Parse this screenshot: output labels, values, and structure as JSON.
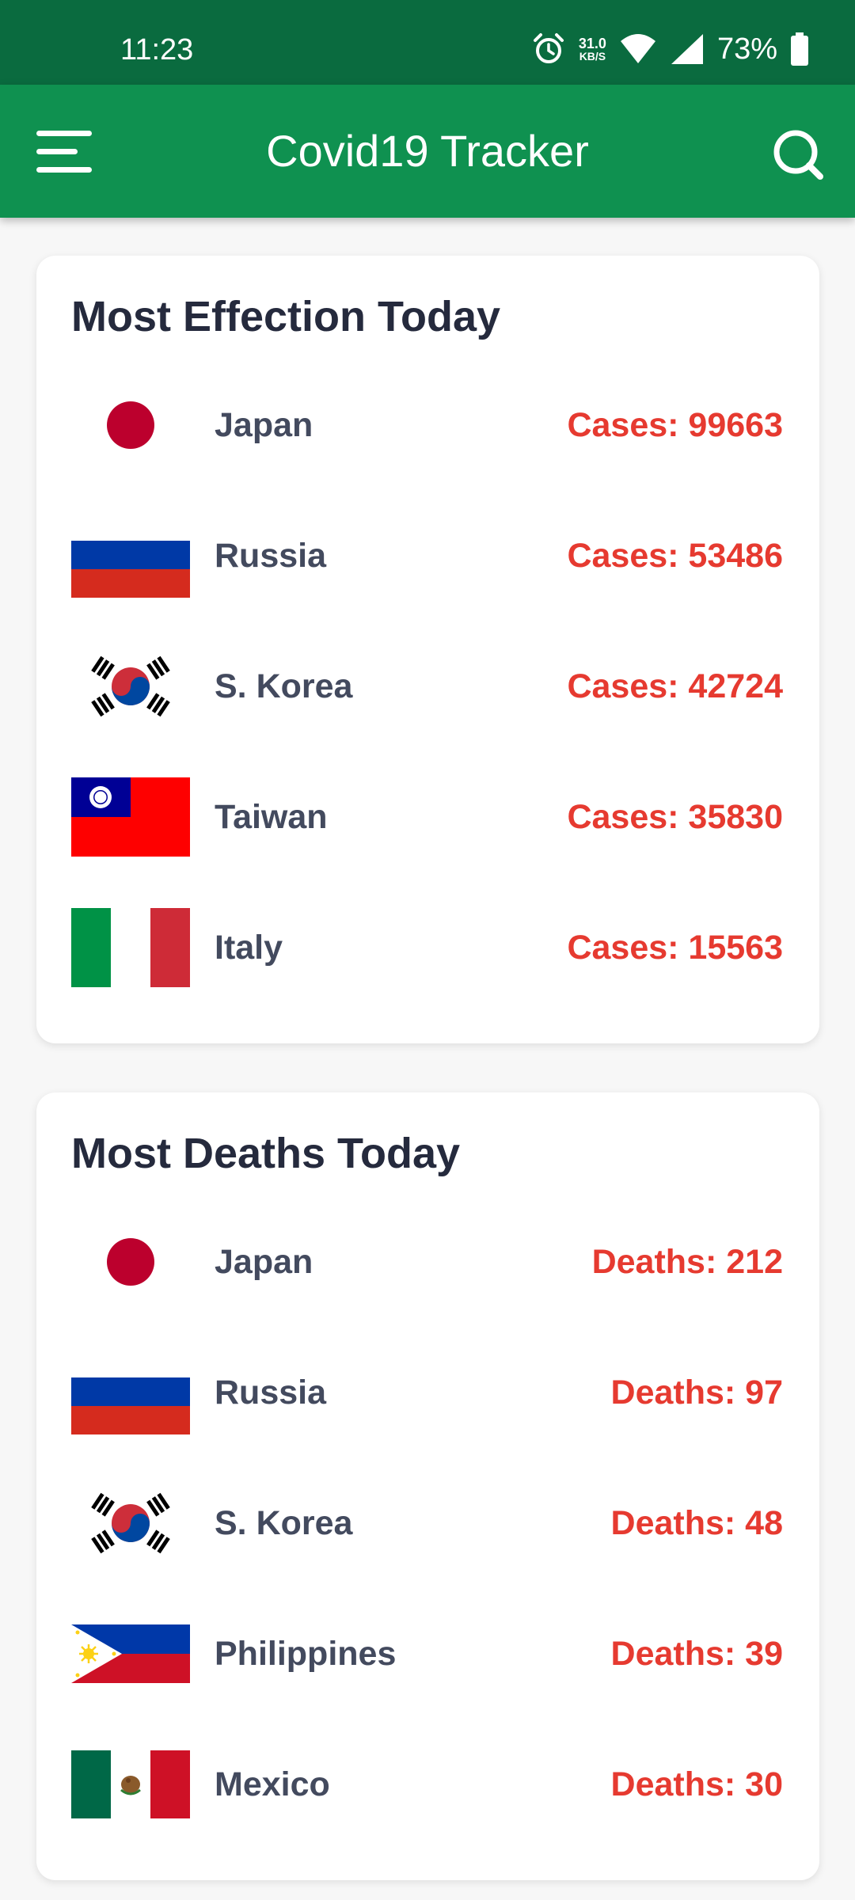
{
  "status_bar": {
    "time": "11:23",
    "net_speed_value": "31.0",
    "net_speed_unit": "KB/S",
    "battery_percent": "73%",
    "icons": [
      "alarm-icon",
      "wifi-icon",
      "signal-icon",
      "battery-icon"
    ]
  },
  "app_bar": {
    "title": "Covid19 Tracker",
    "menu_icon": "menu-icon",
    "search_icon": "search-icon"
  },
  "colors": {
    "status_bar": "#0a6b3f",
    "app_bar": "#0f9150",
    "title_text": "#252a3d",
    "country_text": "#434a5e",
    "stat_text": "#e63a30"
  },
  "most_effection": {
    "title": "Most Effection Today",
    "rows": [
      {
        "flag": "japan-flag-icon",
        "country": "Japan",
        "stat": "Cases: 99663"
      },
      {
        "flag": "russia-flag-icon",
        "country": "Russia",
        "stat": "Cases: 53486"
      },
      {
        "flag": "south-korea-flag-icon",
        "country": "S. Korea",
        "stat": "Cases: 42724"
      },
      {
        "flag": "taiwan-flag-icon",
        "country": "Taiwan",
        "stat": "Cases: 35830"
      },
      {
        "flag": "italy-flag-icon",
        "country": "Italy",
        "stat": "Cases: 15563"
      }
    ]
  },
  "most_deaths": {
    "title": "Most Deaths Today",
    "rows": [
      {
        "flag": "japan-flag-icon",
        "country": "Japan",
        "stat": "Deaths: 212"
      },
      {
        "flag": "russia-flag-icon",
        "country": "Russia",
        "stat": "Deaths: 97"
      },
      {
        "flag": "south-korea-flag-icon",
        "country": "S. Korea",
        "stat": "Deaths: 48"
      },
      {
        "flag": "philippines-flag-icon",
        "country": "Philippines",
        "stat": "Deaths: 39"
      },
      {
        "flag": "mexico-flag-icon",
        "country": "Mexico",
        "stat": "Deaths: 30"
      }
    ]
  }
}
